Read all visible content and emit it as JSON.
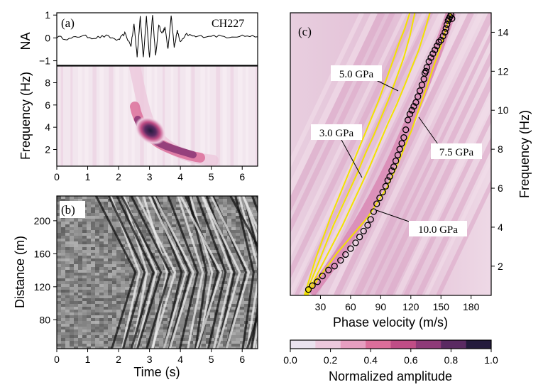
{
  "colors": {
    "background": "#ffffff",
    "trace": "#000000",
    "model_curve": "#f2e200",
    "picks": "#000000",
    "colormap": [
      "#eae2ee",
      "#ecc8dc",
      "#e69ec0",
      "#dc6e9a",
      "#c04d86",
      "#8e3a78",
      "#5a2a62",
      "#231a3c"
    ]
  },
  "panel_a": {
    "label": "(a)",
    "station": "CH227",
    "ylabel_top": "NA",
    "ylabel_bottom": "Frequency (Hz)",
    "na_ticks": [
      "1",
      "0",
      "−1"
    ],
    "freq_ticks": [
      "8",
      "6",
      "4",
      "2"
    ],
    "time_ticks": [
      "0",
      "1",
      "2",
      "3",
      "4",
      "5",
      "6"
    ]
  },
  "panel_b": {
    "label": "(b)",
    "ylabel": "Distance (m)",
    "xlabel": "Time (s)",
    "distance_ticks": [
      "200",
      "160",
      "120",
      "80"
    ],
    "time_ticks": [
      "0",
      "1",
      "2",
      "3",
      "4",
      "5",
      "6"
    ]
  },
  "panel_c": {
    "label": "(c)",
    "xlabel": "Phase velocity (m/s)",
    "ylabel": "Frequency (Hz)",
    "velocity_ticks": [
      "30",
      "60",
      "90",
      "120",
      "150",
      "180"
    ],
    "freq_ticks": [
      "14",
      "12",
      "10",
      "8",
      "6",
      "4",
      "2"
    ],
    "annotations": [
      "5.0 GPa",
      "3.0 GPa",
      "7.5 GPa",
      "10.0 GPa"
    ]
  },
  "colorbar": {
    "label": "Normalized amplitude",
    "ticks": [
      "0.0",
      "0.2",
      "0.4",
      "0.6",
      "0.8",
      "1.0"
    ]
  },
  "chart_data": [
    {
      "type": "line",
      "panel": "(a)",
      "title": "CH227",
      "xlabel": "Time (s)",
      "ylabel": "NA",
      "xlim": [
        0,
        6.5
      ],
      "ylim": [
        -1.2,
        1.1
      ],
      "series": [
        {
          "name": "CH227",
          "x": [
            0,
            0.4,
            0.8,
            1.2,
            1.6,
            2.0,
            2.2,
            2.4,
            2.5,
            2.6,
            2.7,
            2.8,
            2.9,
            3.0,
            3.1,
            3.2,
            3.3,
            3.4,
            3.5,
            3.6,
            3.7,
            3.8,
            3.9,
            4.0,
            4.2,
            4.5,
            5.0,
            5.5,
            6.0,
            6.5
          ],
          "y": [
            0.05,
            -0.05,
            0.1,
            0.0,
            0.08,
            -0.1,
            0.2,
            -0.35,
            0.6,
            -0.8,
            0.9,
            -0.85,
            0.95,
            -0.9,
            1.0,
            -0.8,
            0.6,
            0.2,
            0.45,
            -0.5,
            1.0,
            -0.4,
            0.3,
            -0.2,
            0.15,
            0.05,
            0.1,
            0.05,
            0.1,
            0.05
          ]
        }
      ]
    },
    {
      "type": "heatmap",
      "panel": "(a)",
      "xlabel": "Time (s)",
      "ylabel": "Frequency (Hz)",
      "xlim": [
        0,
        6.5
      ],
      "ylim": [
        0.5,
        9.5
      ],
      "peak": {
        "x": 3.0,
        "y": 3.5,
        "value": 1.0
      },
      "energy_ridge": {
        "x": [
          2.55,
          2.7,
          2.9,
          3.2,
          3.6,
          4.0
        ],
        "y": [
          5.6,
          4.6,
          3.5,
          2.7,
          2.2,
          1.9
        ]
      }
    },
    {
      "type": "heatmap",
      "panel": "(b)",
      "xlabel": "Time (s)",
      "ylabel": "Distance (m)",
      "xlim": [
        0,
        6.5
      ],
      "ylim": [
        45,
        230
      ],
      "wavefield_onset_time": 2.0
    },
    {
      "type": "scatter",
      "panel": "(c)",
      "xlabel": "Phase velocity (m/s)",
      "ylabel": "Frequency (Hz)",
      "xlim": [
        0,
        200
      ],
      "ylim": [
        0.5,
        15
      ],
      "series": [
        {
          "name": "picks",
          "x": [
            18,
            22,
            27,
            32,
            38,
            44,
            50,
            55,
            60,
            65,
            69,
            73,
            77,
            80,
            83,
            86,
            89,
            92,
            95,
            97,
            99,
            101,
            103,
            105,
            107,
            109,
            111,
            113,
            115,
            117,
            119,
            121,
            123,
            125,
            127,
            129,
            131,
            133,
            134,
            135,
            136,
            138,
            140,
            142,
            144,
            146,
            148,
            150,
            152,
            154,
            155,
            156,
            157,
            158,
            159,
            160,
            161
          ],
          "y": [
            0.8,
            1.0,
            1.2,
            1.5,
            1.8,
            2.0,
            2.3,
            2.6,
            2.9,
            3.2,
            3.5,
            3.8,
            4.1,
            4.4,
            4.8,
            5.2,
            5.5,
            5.8,
            6.1,
            6.4,
            6.6,
            6.9,
            7.1,
            7.4,
            7.7,
            8.0,
            8.3,
            8.6,
            9.0,
            9.5,
            9.8,
            10.0,
            10.2,
            10.4,
            10.7,
            11.0,
            11.3,
            11.6,
            11.9,
            12.0,
            12.2,
            12.5,
            12.7,
            12.9,
            13.1,
            13.3,
            13.5,
            13.6,
            13.8,
            14.0,
            14.2,
            14.4,
            14.6,
            14.7,
            14.8,
            14.9,
            14.7
          ]
        },
        {
          "name": "10.0 GPa",
          "x": [
            17,
            27,
            37,
            47,
            57,
            67,
            77,
            87,
            96,
            105,
            113,
            121,
            129,
            136,
            143,
            150,
            155,
            160
          ],
          "y": [
            0.5,
            1.3,
            2.0,
            2.7,
            3.3,
            3.9,
            4.5,
            5.3,
            6.0,
            7.0,
            8.0,
            9.0,
            10.2,
            11.2,
            12.3,
            13.3,
            14.2,
            15.0
          ]
        },
        {
          "name": "7.5 GPa",
          "x": [
            16,
            25,
            34,
            43,
            52,
            61,
            70,
            79,
            88,
            97,
            106,
            114,
            121,
            128,
            134,
            139
          ],
          "y": [
            0.5,
            1.4,
            2.3,
            3.2,
            4.1,
            5.1,
            6.1,
            7.1,
            8.2,
            9.3,
            10.3,
            11.3,
            12.2,
            13.1,
            14.1,
            15.0
          ]
        },
        {
          "name": "5.0 GPa",
          "x": [
            15,
            22,
            29,
            36,
            43,
            51,
            59,
            67,
            75,
            83,
            91,
            99,
            106,
            113,
            119,
            124
          ],
          "y": [
            0.5,
            1.4,
            2.3,
            3.2,
            4.1,
            5.0,
            5.9,
            6.8,
            7.8,
            8.7,
            9.7,
            10.7,
            11.7,
            12.7,
            13.8,
            15.0
          ]
        },
        {
          "name": "3.0 GPa",
          "x": [
            14,
            20,
            26,
            33,
            40,
            48,
            56,
            64,
            72,
            80,
            88,
            95,
            102,
            108,
            114,
            119
          ],
          "y": [
            0.5,
            1.5,
            2.5,
            3.5,
            4.5,
            5.5,
            6.5,
            7.5,
            8.5,
            9.5,
            10.5,
            11.5,
            12.5,
            13.4,
            14.2,
            15.0
          ]
        }
      ]
    }
  ]
}
